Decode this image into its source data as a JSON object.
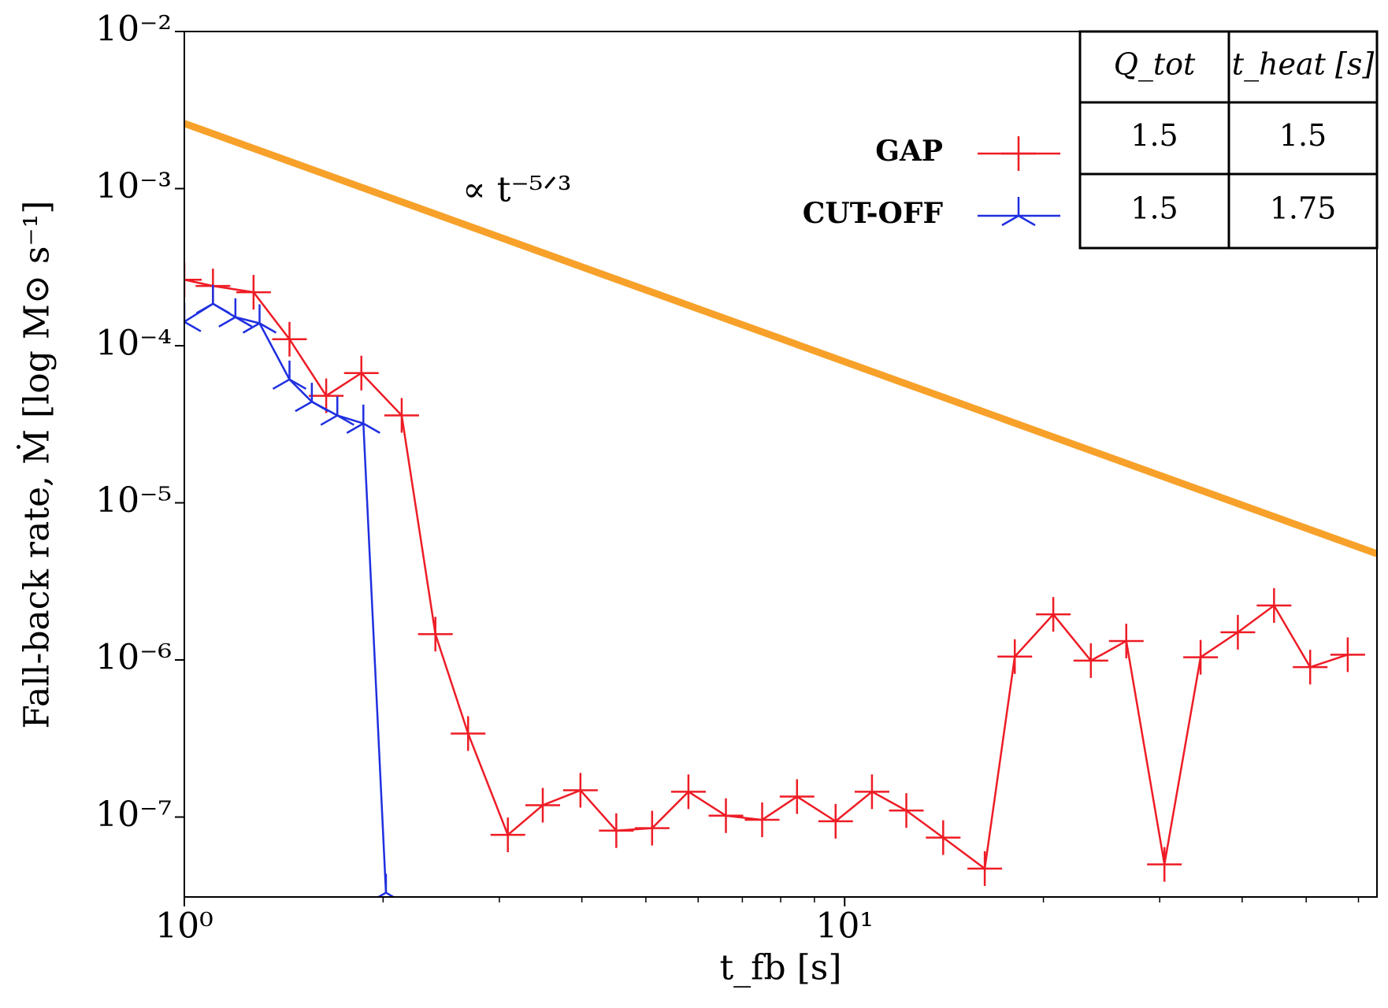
{
  "chart_data": {
    "type": "line",
    "xlabel": "t_fb [s]",
    "ylabel": "Fall-back rate, Ṁ [log M⊙ s⁻¹]",
    "xscale": "log",
    "yscale": "log",
    "xlim": [
      1,
      64
    ],
    "ylim": [
      3.1e-08,
      0.01
    ],
    "xticks": [
      {
        "value": 1,
        "label": "10⁰"
      },
      {
        "value": 10,
        "label": "10¹"
      }
    ],
    "xminorticks": [
      2,
      3,
      4,
      5,
      6,
      7,
      8,
      9,
      20,
      30,
      40,
      50,
      60
    ],
    "yticks": [
      {
        "value": 1e-07,
        "label": "10⁻⁷"
      },
      {
        "value": 1e-06,
        "label": "10⁻⁶"
      },
      {
        "value": 1e-05,
        "label": "10⁻⁵"
      },
      {
        "value": 0.0001,
        "label": "10⁻⁴"
      },
      {
        "value": 0.001,
        "label": "10⁻³"
      },
      {
        "value": 0.01,
        "label": "10⁻²"
      }
    ],
    "series": [
      {
        "name": "GAP",
        "color": "#ee1c25",
        "marker": "+",
        "x": [
          1.0,
          1.105,
          1.273,
          1.443,
          1.64,
          1.854,
          2.134,
          2.4,
          2.69,
          3.09,
          3.49,
          3.98,
          4.51,
          5.11,
          5.8,
          6.61,
          7.5,
          8.47,
          9.69,
          11.0,
          12.4,
          14.1,
          16.3,
          18.1,
          20.7,
          23.6,
          26.7,
          30.5,
          34.6,
          39.4,
          44.7,
          50.7,
          57.8
        ],
        "values": [
          0.000263,
          0.00024,
          0.000219,
          0.00011,
          4.8e-05,
          6.7e-05,
          3.6e-05,
          1.46e-06,
          3.4e-07,
          7.7e-08,
          1.19e-07,
          1.48e-07,
          8.2e-08,
          8.5e-08,
          1.45e-07,
          1.02e-07,
          9.6e-08,
          1.35e-07,
          9.4e-08,
          1.45e-07,
          1.1e-07,
          7.4e-08,
          4.7e-08,
          1.05e-06,
          1.95e-06,
          9.9e-07,
          1.32e-06,
          5e-08,
          1.04e-06,
          1.5e-06,
          2.22e-06,
          9e-07,
          1.08e-06
        ]
      },
      {
        "name": "CUT-OFF",
        "color": "#1f2fe0",
        "marker": "tri_down",
        "x": [
          1.0,
          1.105,
          1.195,
          1.3,
          1.443,
          1.56,
          1.705,
          1.867,
          2.02
        ],
        "values": [
          0.000142,
          0.000185,
          0.000152,
          0.000139,
          6.1e-05,
          4.4e-05,
          3.6e-05,
          3.2e-05,
          3.3e-08
        ]
      }
    ],
    "reference_line": {
      "x": [
        1,
        64
      ],
      "values": [
        0.0026,
        4.74e-06
      ],
      "color": "#f7a12a"
    },
    "annotation": "∝ t⁻⁵ᐟ³",
    "table": {
      "header": [
        "Q_tot",
        "t_heat [s]"
      ],
      "rows": [
        [
          "1.5",
          "1.5"
        ],
        [
          "1.5",
          "1.75"
        ]
      ]
    }
  }
}
